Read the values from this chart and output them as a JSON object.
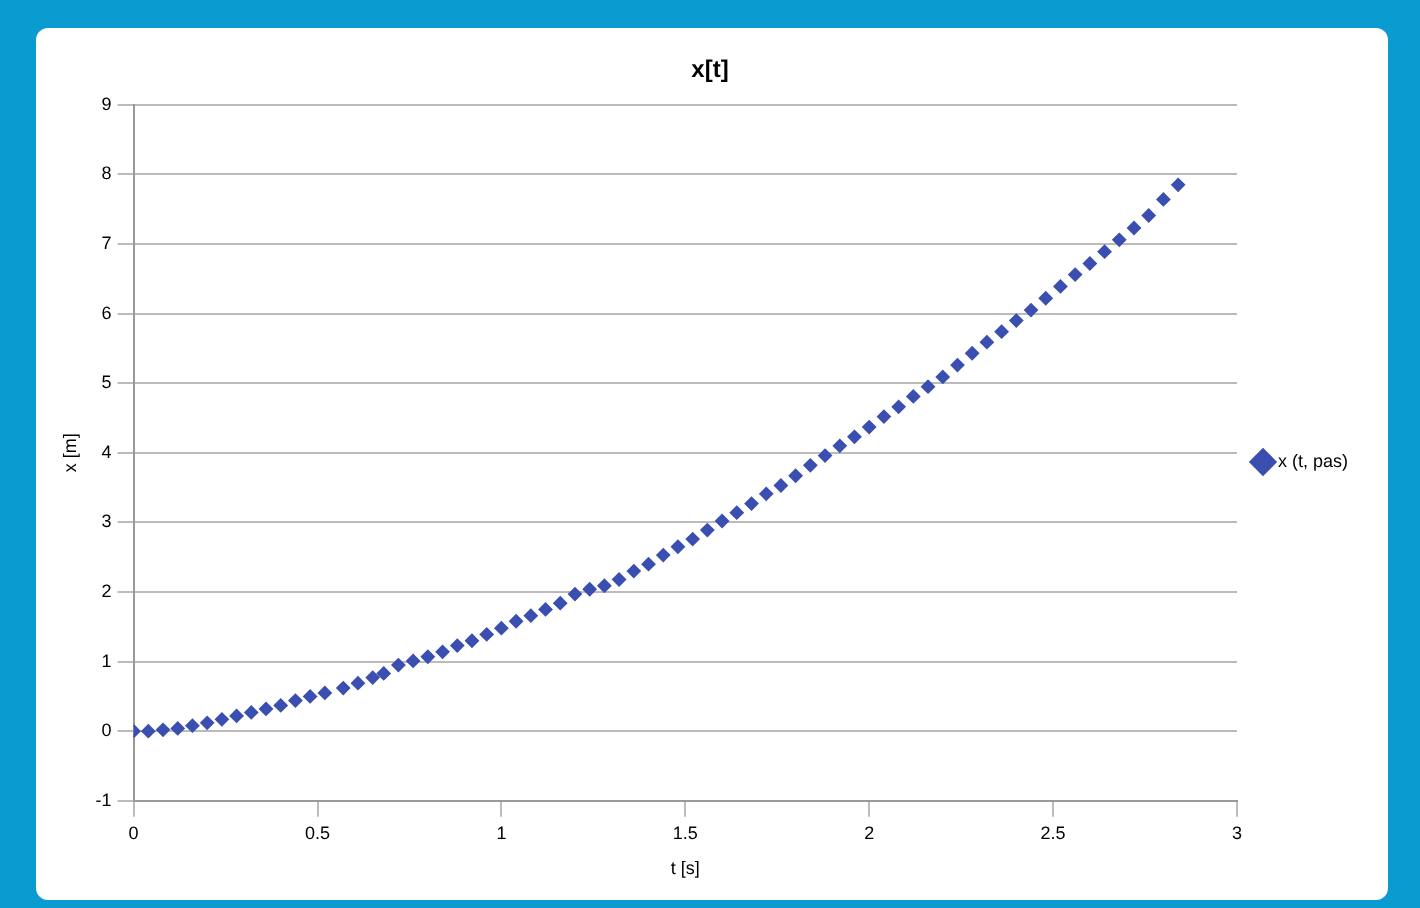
{
  "chart_data": {
    "type": "scatter",
    "title": "x[t]",
    "xlabel": "t [s]",
    "ylabel": "x [m]",
    "x": [
      0,
      0.04,
      0.08,
      0.12,
      0.16,
      0.2,
      0.24,
      0.28,
      0.32,
      0.36,
      0.4,
      0.44,
      0.48,
      0.52,
      0.57,
      0.61,
      0.65,
      0.68,
      0.72,
      0.76,
      0.8,
      0.84,
      0.88,
      0.92,
      0.96,
      1.0,
      1.04,
      1.08,
      1.12,
      1.16,
      1.2,
      1.24,
      1.28,
      1.32,
      1.36,
      1.4,
      1.44,
      1.48,
      1.52,
      1.56,
      1.6,
      1.64,
      1.68,
      1.72,
      1.76,
      1.8,
      1.84,
      1.88,
      1.92,
      1.96,
      2.0,
      2.04,
      2.08,
      2.12,
      2.16,
      2.2,
      2.24,
      2.28,
      2.32,
      2.36,
      2.4,
      2.44,
      2.48,
      2.52,
      2.56,
      2.6,
      2.64,
      2.68,
      2.72,
      2.76,
      2.8,
      2.84
    ],
    "series": [
      {
        "name": "x (t, pas)",
        "color": "#3a4fb0",
        "values": [
          0,
          0,
          0.02,
          0.04,
          0.08,
          0.12,
          0.17,
          0.22,
          0.27,
          0.32,
          0.37,
          0.44,
          0.5,
          0.55,
          0.62,
          0.69,
          0.77,
          0.83,
          0.95,
          1.01,
          1.07,
          1.14,
          1.23,
          1.3,
          1.39,
          1.48,
          1.58,
          1.66,
          1.75,
          1.84,
          1.97,
          2.04,
          2.09,
          2.18,
          2.3,
          2.4,
          2.53,
          2.65,
          2.76,
          2.89,
          3.02,
          3.14,
          3.27,
          3.41,
          3.53,
          3.67,
          3.82,
          3.96,
          4.1,
          4.23,
          4.37,
          4.52,
          4.66,
          4.81,
          4.95,
          5.09,
          5.26,
          5.43,
          5.59,
          5.74,
          5.9,
          6.05,
          6.22,
          6.39,
          6.56,
          6.72,
          6.89,
          7.06,
          7.23,
          7.41,
          7.64,
          7.85
        ]
      }
    ],
    "xlim": [
      0,
      3
    ],
    "xticks": [
      0,
      0.5,
      1,
      1.5,
      2,
      2.5,
      3
    ],
    "ylim": [
      -1,
      9
    ],
    "yticks": [
      -1,
      0,
      1,
      2,
      3,
      4,
      5,
      6,
      7,
      8,
      9
    ],
    "grid": "y",
    "legend": "right",
    "marker": "diamond"
  }
}
